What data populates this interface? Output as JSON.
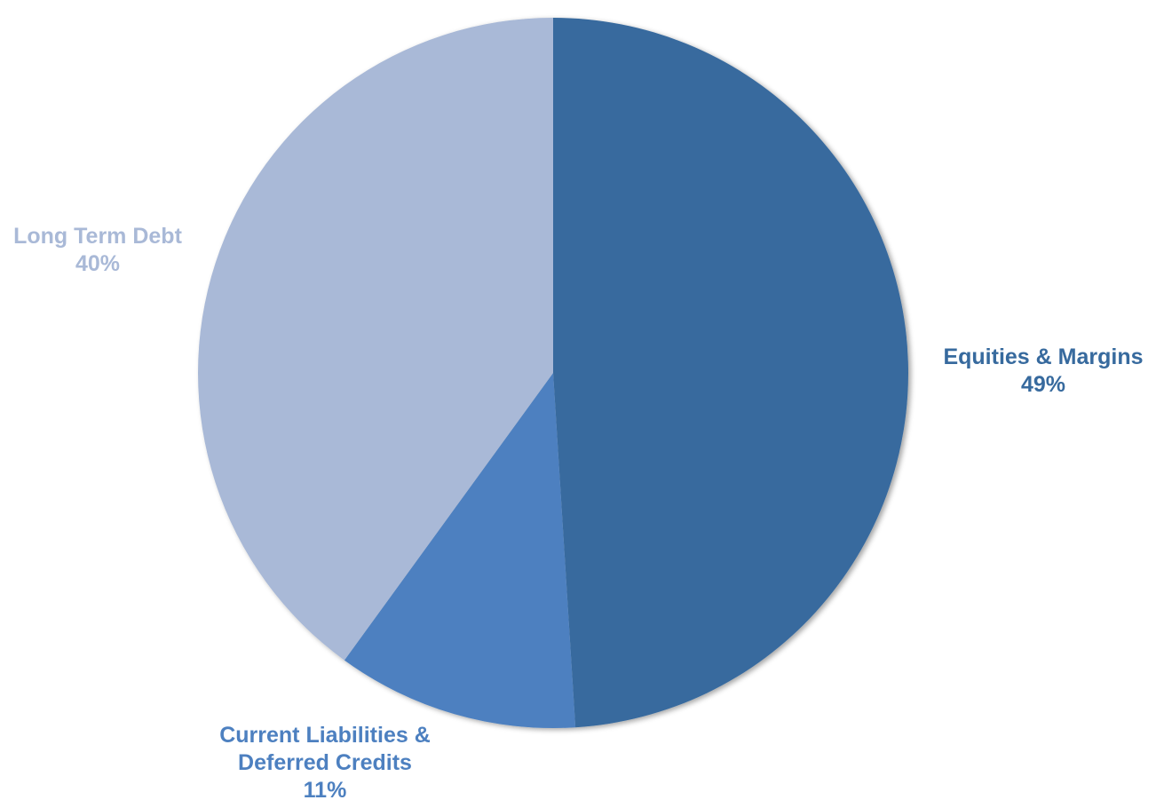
{
  "chart_data": {
    "type": "pie",
    "title": "",
    "start_angle_deg": 0,
    "direction": "clockwise",
    "slices": [
      {
        "label_lines": [
          "Equities & Margins"
        ],
        "percent_label": "49%",
        "value": 49,
        "color": "#376a9e"
      },
      {
        "label_lines": [
          "Current Liabilities &",
          "Deferred Credits"
        ],
        "percent_label": "11%",
        "value": 11,
        "color": "#4d80c0"
      },
      {
        "label_lines": [
          "Long Term Debt"
        ],
        "percent_label": "40%",
        "value": 40,
        "color": "#a9b9d7"
      }
    ]
  }
}
